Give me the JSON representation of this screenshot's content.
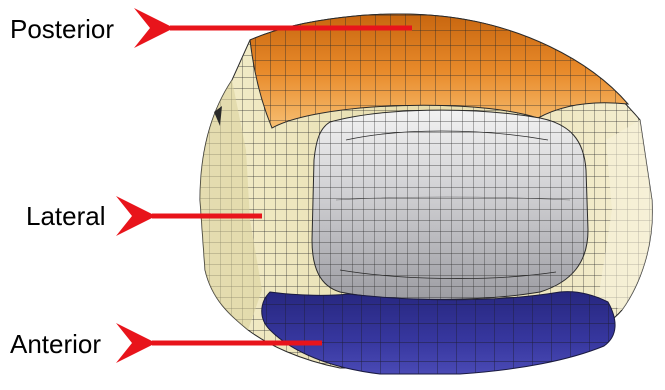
{
  "labels": {
    "posterior": "Posterior",
    "lateral": "Lateral",
    "anterior": "Anterior"
  },
  "colors": {
    "arrow": "#e8141b",
    "posterior_band_dark": "#e07a1a",
    "posterior_band_light": "#f6b466",
    "lateral_wall": "#ece4b8",
    "central_surface_light": "#e4e4e4",
    "central_surface_dark": "#a9a9ad",
    "anterior_band": "#34349a",
    "mesh_lines": "#2a2a2a"
  },
  "figure": {
    "subject": "finite-element mesh of a tibial insert surface",
    "icon": "mesh-model"
  }
}
